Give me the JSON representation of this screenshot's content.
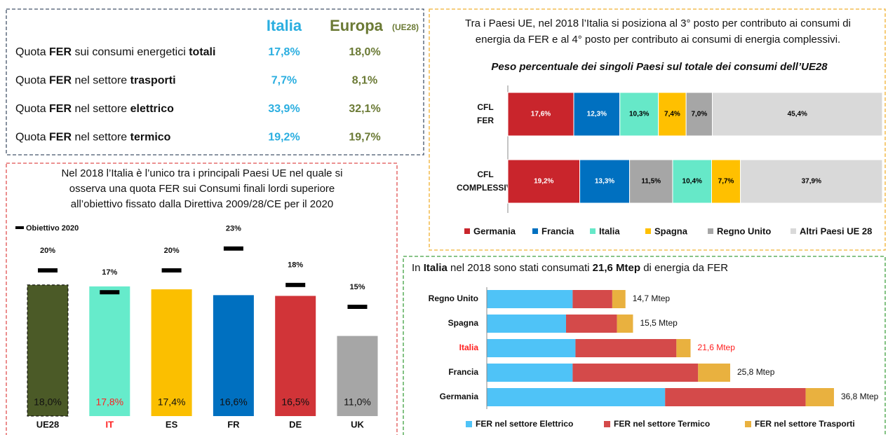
{
  "table": {
    "headers": [
      "Italia",
      "Europa",
      "(UE28)"
    ],
    "rows": [
      {
        "label": [
          "Quota ",
          "FER",
          " sui consumi energetici ",
          "totali"
        ],
        "values": [
          "17,8%",
          "18,0%"
        ]
      },
      {
        "label": [
          "Quota ",
          "FER",
          " nel settore ",
          "trasporti"
        ],
        "values": [
          "7,7%",
          "8,1%"
        ]
      },
      {
        "label": [
          "Quota ",
          "FER",
          " nel settore ",
          "elettrico"
        ],
        "values": [
          "33,9%",
          "32,1%"
        ]
      },
      {
        "label": [
          "Quota ",
          "FER",
          " nel settore ",
          "termico"
        ],
        "values": [
          "19,2%",
          "19,7%"
        ]
      }
    ]
  },
  "chart_data": [
    {
      "type": "bar",
      "title": [
        "Nel 2018 l’Italia è l’unico tra i principali Paesi UE nel quale si",
        "osserva una quota FER sui Consumi finali lordi superiore",
        "all’obiettivo fissato dalla Direttiva 2009/28/CE per il 2020"
      ],
      "categories": [
        "UE28",
        "IT",
        "ES",
        "FR",
        "DE",
        "UK"
      ],
      "values": [
        18.0,
        17.8,
        17.4,
        16.6,
        16.5,
        11.0
      ],
      "value_labels": [
        "18,0%",
        "17,8%",
        "17,4%",
        "16,6%",
        "16,5%",
        "11,0%"
      ],
      "colors": [
        "#4b5a27",
        "#66ebcb",
        "#fbbf00",
        "#0070c0",
        "#d13438",
        "#a6a6a6"
      ],
      "outline_dashed": [
        true,
        false,
        false,
        false,
        false,
        false
      ],
      "target": {
        "name": "Obiettivo 2020",
        "values": [
          20,
          17,
          20,
          23,
          18,
          15
        ],
        "value_labels": [
          "20%",
          "17%",
          "20%",
          "23%",
          "18%",
          "15%"
        ]
      },
      "ylim": [
        0,
        25
      ],
      "highlight_index": 1,
      "highlight_color": "#ff2020"
    },
    {
      "type": "stacked_bar_100",
      "title": [
        "Tra i Paesi UE, nel 2018 l’Italia si posiziona al 3° posto per contributo ai consumi di",
        "energia da FER e al 4° posto per contributo ai consumi di energia complessivi."
      ],
      "subtitle": "Peso percentuale dei singoli Paesi sul totale dei consumi dell’UE28",
      "categories": [
        [
          "CFL",
          "FER"
        ],
        [
          "CFL",
          "COMPLESSIVI"
        ]
      ],
      "series": [
        {
          "name": "Germania",
          "color": "#c9252c",
          "label_color": "#ffffff",
          "values": [
            17.6,
            19.2
          ],
          "value_labels": [
            "17,6%",
            "19,2%"
          ]
        },
        {
          "name": "Francia",
          "color": "#0070c0",
          "label_color": "#ffffff",
          "values": [
            12.3,
            13.3
          ],
          "value_labels": [
            "12,3%",
            "13,3%"
          ]
        },
        {
          "name": "Italia",
          "color": "#66e8c8",
          "label_color": "#000000",
          "values": [
            10.3,
            10.4
          ],
          "value_labels": [
            "10,3%",
            "10,4%"
          ]
        },
        {
          "name": "Spagna",
          "color": "#ffc000",
          "label_color": "#000000",
          "values": [
            7.4,
            7.7
          ],
          "value_labels": [
            "7,4%",
            "7,7%"
          ]
        },
        {
          "name": "Regno Unito",
          "color": "#a6a6a6",
          "label_color": "#000000",
          "values": [
            7.0,
            11.5
          ],
          "value_labels": [
            "7,0%",
            "11,5%"
          ]
        },
        {
          "name": "Altri Paesi UE 28",
          "color": "#d9d9d9",
          "label_color": "#000000",
          "values": [
            45.4,
            37.9
          ],
          "value_labels": [
            "45,4%",
            "37,9%"
          ]
        }
      ],
      "stack_order": [
        [
          0,
          1,
          2,
          3,
          4,
          5
        ],
        [
          0,
          1,
          4,
          2,
          3,
          5
        ]
      ],
      "xlim": [
        0,
        100
      ]
    },
    {
      "type": "stacked_barh",
      "title": [
        "In ",
        "Italia",
        " nel 2018 sono stati consumati ",
        "21,6 Mtep",
        " di energia da FER"
      ],
      "categories": [
        "Regno Unito",
        "Spagna",
        "Italia",
        "Francia",
        "Germania"
      ],
      "series": [
        {
          "name": "FER nel settore Elettrico",
          "color": "#4fc3f7",
          "values": [
            9.1,
            8.4,
            9.4,
            9.1,
            18.9
          ]
        },
        {
          "name": "FER nel settore Termico",
          "color": "#d44a4a",
          "values": [
            4.2,
            5.4,
            10.7,
            13.3,
            14.9
          ]
        },
        {
          "name": "FER nel settore Trasporti",
          "color": "#e9b13f",
          "values": [
            1.4,
            1.7,
            1.5,
            3.4,
            3.0
          ]
        }
      ],
      "total_labels": [
        "14,7 Mtep",
        "15,5 Mtep",
        "21,6 Mtep",
        "25,8 Mtep",
        "36,8 Mtep"
      ],
      "xlim": [
        0,
        40
      ],
      "highlight_index": 2,
      "highlight_color": "#ff2020"
    }
  ]
}
